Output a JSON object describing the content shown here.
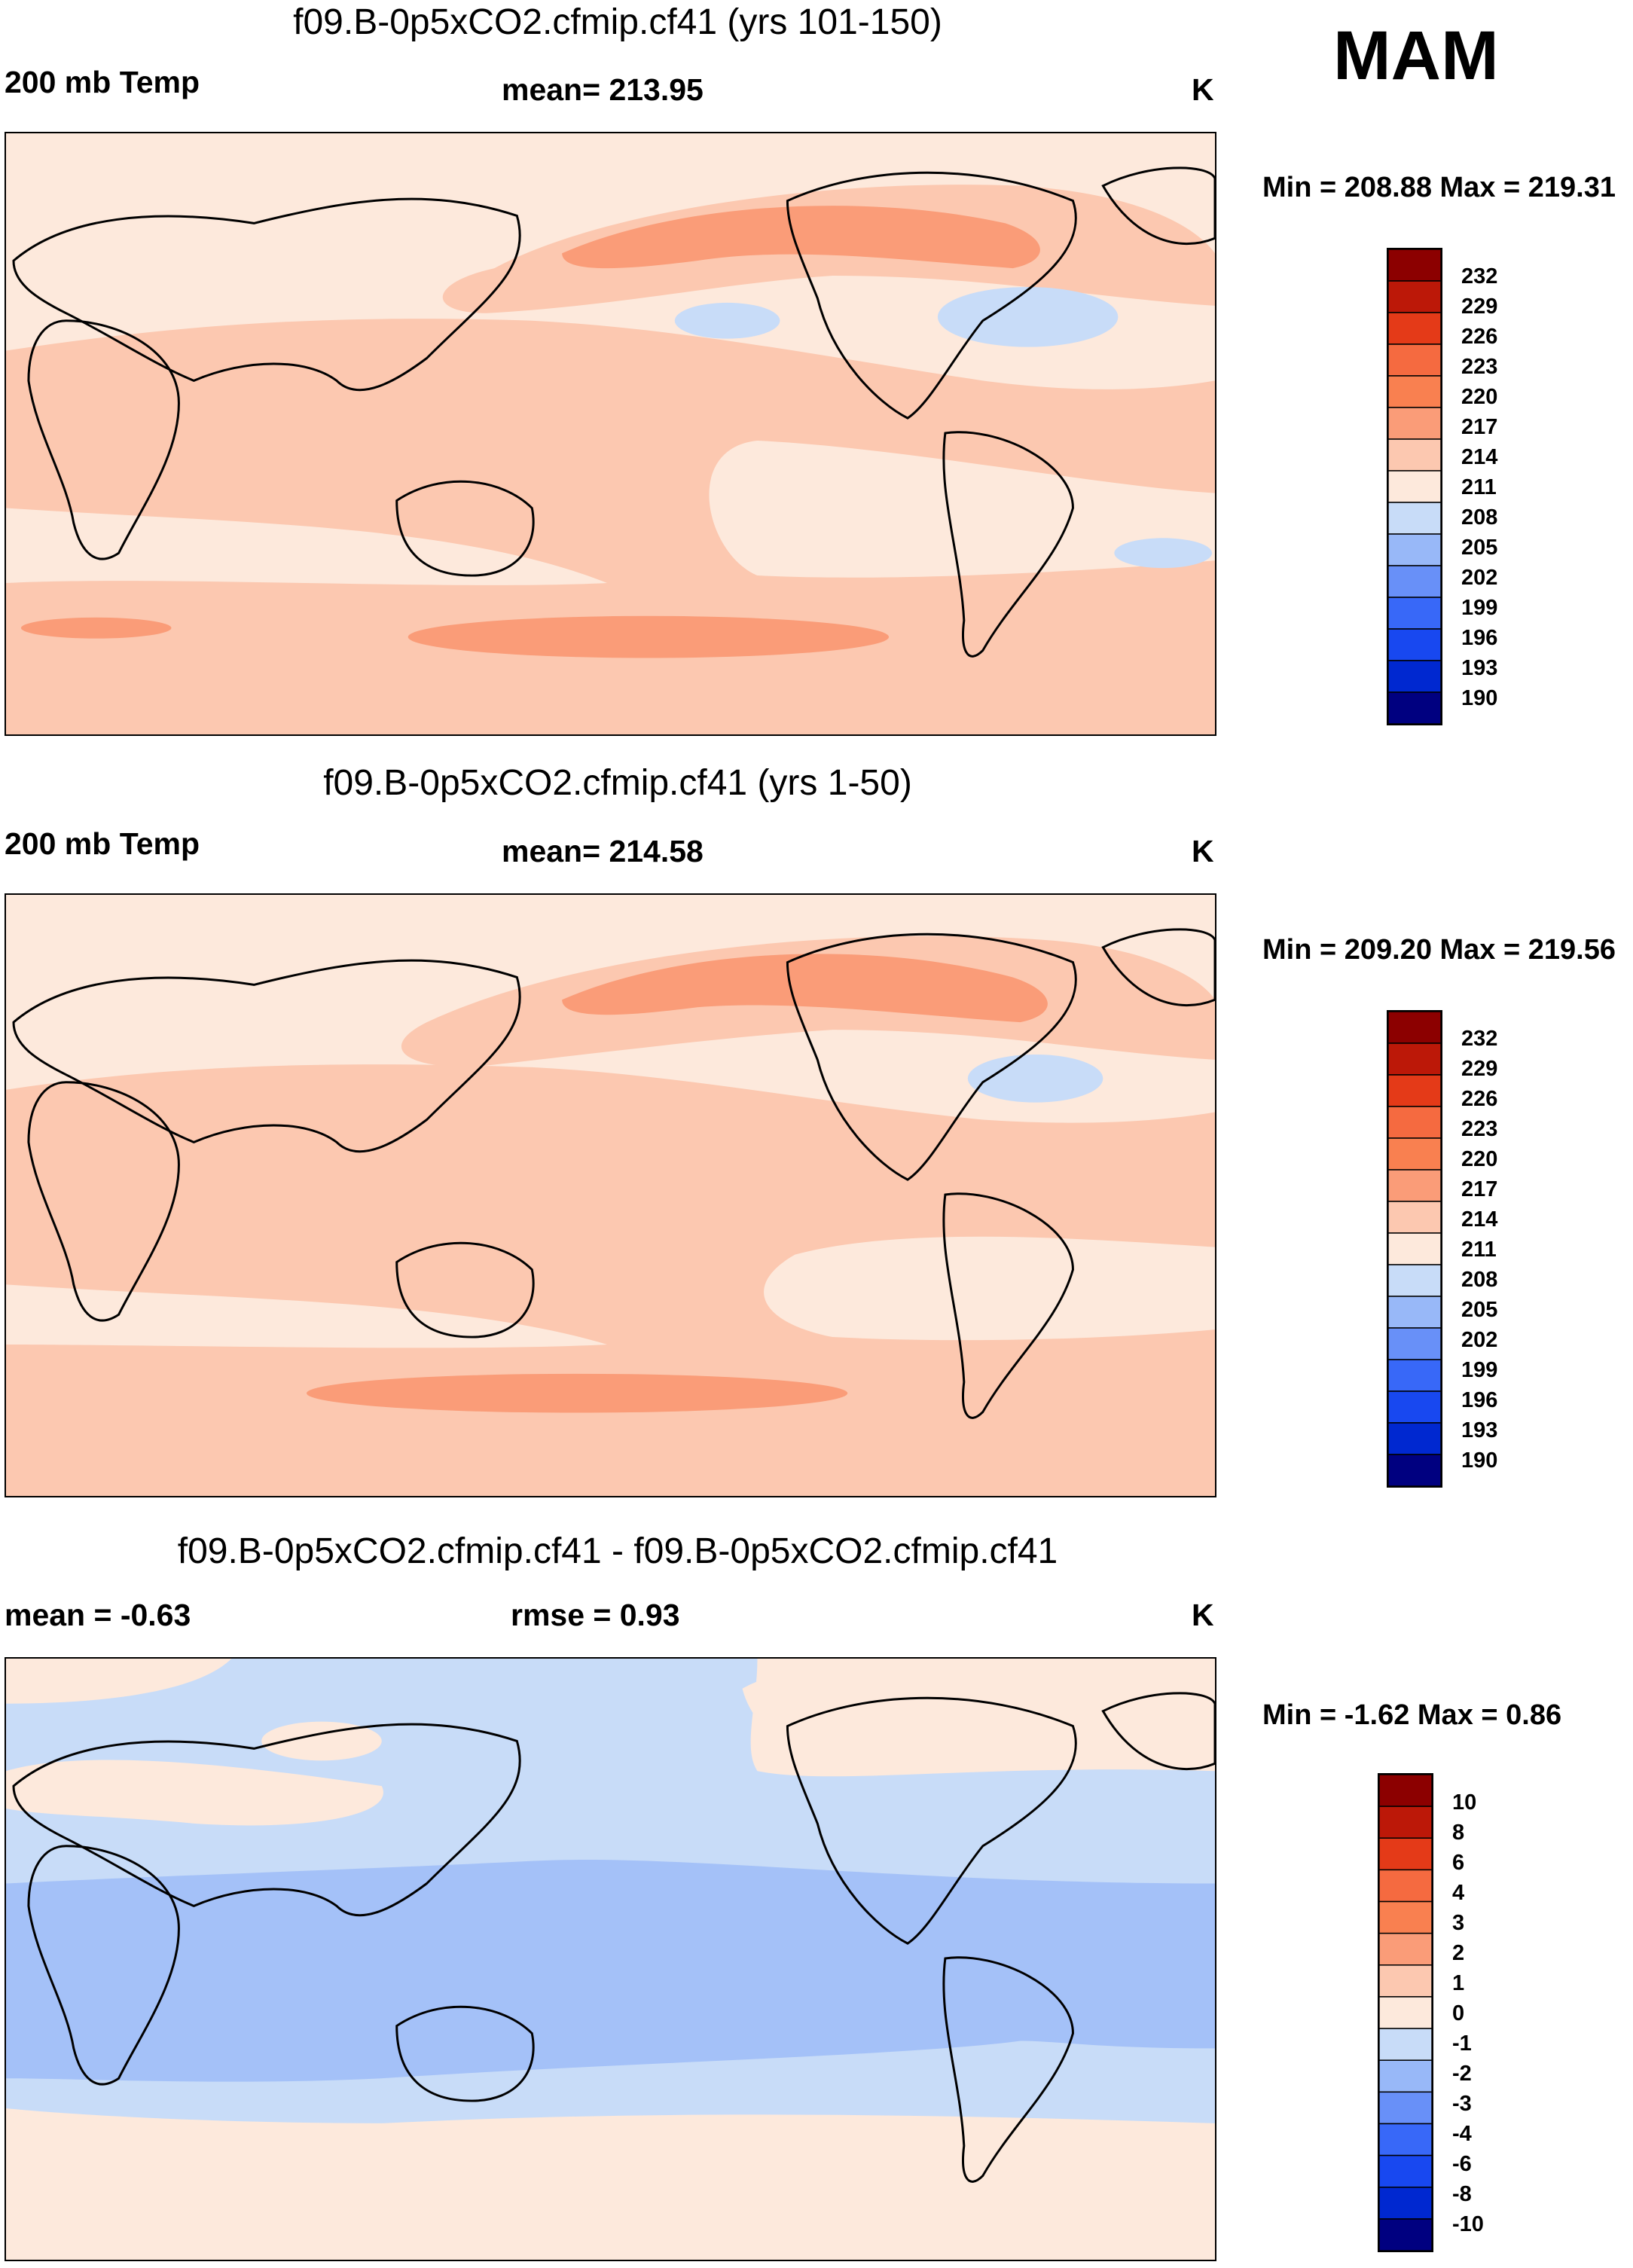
{
  "season": "MAM",
  "units": "K",
  "panels": [
    {
      "title": "f09.B-0p5xCO2.cfmip.cf41 (yrs 101-150)",
      "left_label": "200 mb Temp",
      "center_label": "mean= 213.95",
      "right_label": "K",
      "minmax": "Min = 208.88 Max = 219.31",
      "colorbar_labels": [
        "232",
        "229",
        "226",
        "223",
        "220",
        "217",
        "214",
        "211",
        "208",
        "205",
        "202",
        "199",
        "196",
        "193",
        "190"
      ]
    },
    {
      "title": "f09.B-0p5xCO2.cfmip.cf41 (yrs 1-50)",
      "left_label": "200 mb Temp",
      "center_label": "mean= 214.58",
      "right_label": "K",
      "minmax": "Min = 209.20 Max = 219.56",
      "colorbar_labels": [
        "232",
        "229",
        "226",
        "223",
        "220",
        "217",
        "214",
        "211",
        "208",
        "205",
        "202",
        "199",
        "196",
        "193",
        "190"
      ]
    },
    {
      "title": "f09.B-0p5xCO2.cfmip.cf41 - f09.B-0p5xCO2.cfmip.cf41",
      "left_label": "mean =  -0.63",
      "center_label": "rmse =   0.93",
      "right_label": "K",
      "minmax": "Min =  -1.62 Max =   0.86",
      "colorbar_labels": [
        "10",
        "8",
        "6",
        "4",
        "3",
        "2",
        "1",
        "0",
        "-1",
        "-2",
        "-3",
        "-4",
        "-6",
        "-8",
        "-10"
      ]
    }
  ],
  "colors": {
    "ramp": [
      "#000080",
      "#0010a8",
      "#0028d0",
      "#1848f0",
      "#3868f8",
      "#6890f8",
      "#98b8f8",
      "#c8dcf8",
      "#fde9dc",
      "#fcc8b0",
      "#fa9c78",
      "#f56a40",
      "#e43a18",
      "#bc1808",
      "#8c0000"
    ]
  }
}
